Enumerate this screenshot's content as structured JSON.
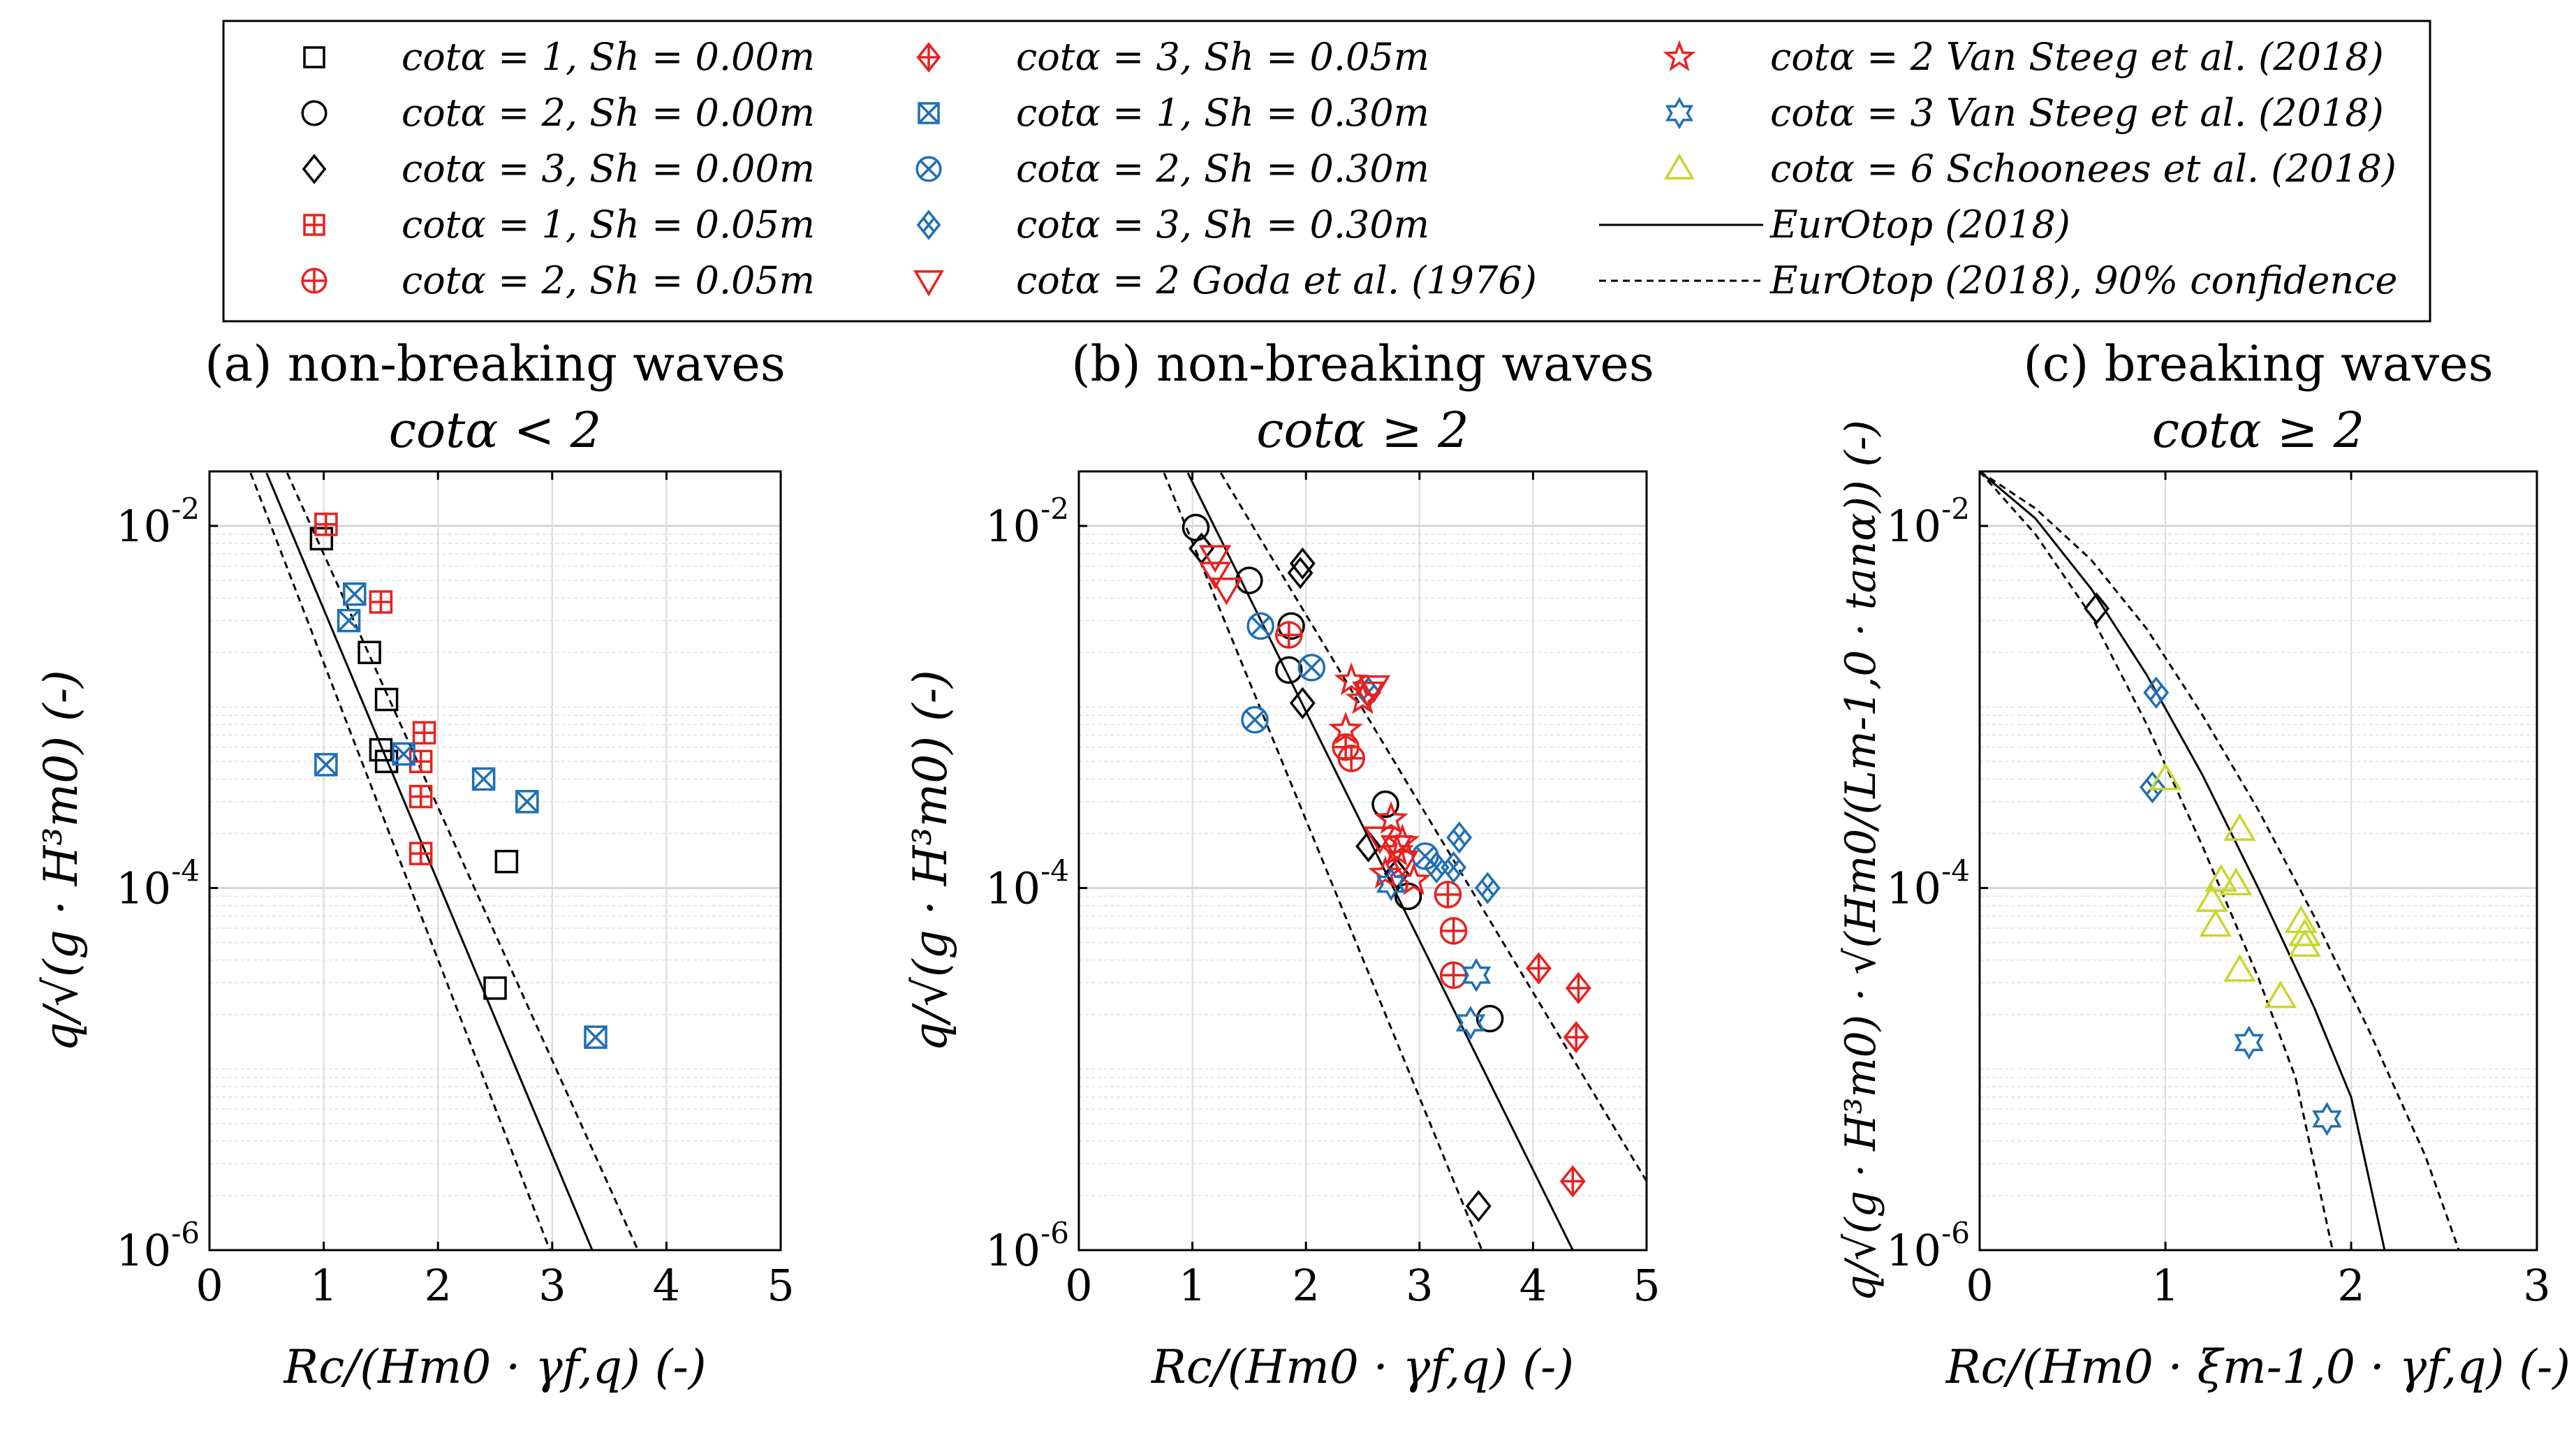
{
  "legend": {
    "entries": [
      {
        "label": "cotα = 1, Sh = 0.00m",
        "marker": "square",
        "color": "#000000"
      },
      {
        "label": "cotα = 2, Sh = 0.00m",
        "marker": "circle",
        "color": "#000000"
      },
      {
        "label": "cotα = 3, Sh = 0.00m",
        "marker": "diamond",
        "color": "#000000"
      },
      {
        "label": "cotα = 1, Sh = 0.05m",
        "marker": "square-plus",
        "color": "#e8211f"
      },
      {
        "label": "cotα = 2, Sh = 0.05m",
        "marker": "circle-plus",
        "color": "#e8211f"
      },
      {
        "label": "cotα = 3, Sh = 0.05m",
        "marker": "diamond-plus",
        "color": "#e8211f"
      },
      {
        "label": "cotα = 1, Sh = 0.30m",
        "marker": "square-x",
        "color": "#1f6fb5"
      },
      {
        "label": "cotα = 2, Sh = 0.30m",
        "marker": "circle-x",
        "color": "#1f6fb5"
      },
      {
        "label": "cotα = 3, Sh = 0.30m",
        "marker": "diamond-x",
        "color": "#1f6fb5"
      },
      {
        "label": "cotα = 2 Goda et al. (1976)",
        "marker": "triangle-down",
        "color": "#e8211f"
      },
      {
        "label": "cotα = 2 Van Steeg et al. (2018)",
        "marker": "star5",
        "color": "#e8211f"
      },
      {
        "label": "cotα = 3 Van Steeg et al. (2018)",
        "marker": "star6",
        "color": "#1f6fb5"
      },
      {
        "label": "cotα = 6 Schoonees et al. (2018)",
        "marker": "triangle-up",
        "color": "#c8d62a"
      },
      {
        "label": "EurOtop (2018)",
        "marker": "line-solid",
        "color": "#000000"
      },
      {
        "label": "EurOtop (2018), 90% confidence",
        "marker": "line-dashed",
        "color": "#000000"
      }
    ]
  },
  "chart_data": [
    {
      "type": "scatter",
      "title": "(a) non-breaking waves",
      "subtitle": "cotα < 2",
      "xlabel": "Rc/(Hm0 · γf,q) (-)",
      "ylabel": "q/√(g · H³m0) (-)",
      "xlim": [
        0,
        5
      ],
      "ylim": [
        1e-06,
        0.02
      ],
      "yscale": "log",
      "xticks": [
        "0",
        "1",
        "2",
        "3",
        "4",
        "5"
      ],
      "yticks": [
        "10-2",
        "10-4",
        "10-6"
      ],
      "grid": true,
      "series": [
        {
          "name": "cotα = 1, Sh = 0.00m",
          "marker": "square",
          "color": "#000000",
          "points": [
            [
              0.98,
              0.0085
            ],
            [
              1.4,
              0.002
            ],
            [
              1.55,
              0.0011
            ],
            [
              1.5,
              0.00058
            ],
            [
              1.55,
              0.0005
            ],
            [
              2.6,
              0.00014
            ],
            [
              2.5,
              2.8e-05
            ]
          ]
        },
        {
          "name": "cotα = 1, Sh = 0.05m",
          "marker": "square-plus",
          "color": "#e8211f",
          "points": [
            [
              1.02,
              0.0102
            ],
            [
              1.5,
              0.0038
            ],
            [
              1.88,
              0.00072
            ],
            [
              1.85,
              0.0005
            ],
            [
              1.85,
              0.00032
            ],
            [
              1.85,
              0.000155
            ]
          ]
        },
        {
          "name": "cotα = 1, Sh = 0.30m",
          "marker": "square-x",
          "color": "#1f6fb5",
          "points": [
            [
              1.27,
              0.0042
            ],
            [
              1.22,
              0.003
            ],
            [
              1.7,
              0.00055
            ],
            [
              1.02,
              0.00048
            ],
            [
              2.4,
              0.0004
            ],
            [
              2.78,
              0.0003
            ],
            [
              3.38,
              1.5e-05
            ]
          ]
        }
      ],
      "lines": [
        {
          "name": "EurOtop (2018)",
          "style": "solid",
          "points": [
            [
              0.5,
              0.0196
            ],
            [
              3.35,
              1e-06
            ]
          ]
        },
        {
          "name": "EurOtop (2018), 90% confidence upper",
          "style": "dashed",
          "points": [
            [
              0.68,
              0.0196
            ],
            [
              3.75,
              1e-06
            ]
          ]
        },
        {
          "name": "EurOtop (2018), 90% confidence lower",
          "style": "dashed",
          "points": [
            [
              0.36,
              0.0196
            ],
            [
              2.98,
              1e-06
            ]
          ]
        }
      ]
    },
    {
      "type": "scatter",
      "title": "(b) non-breaking waves",
      "subtitle": "cotα ≥ 2",
      "xlabel": "Rc/(Hm0 · γf,q) (-)",
      "ylabel": "q/√(g · H³m0) (-)",
      "xlim": [
        0,
        5
      ],
      "ylim": [
        1e-06,
        0.02
      ],
      "yscale": "log",
      "xticks": [
        "0",
        "1",
        "2",
        "3",
        "4",
        "5"
      ],
      "yticks": [
        "10-2",
        "10-4",
        "10-6"
      ],
      "grid": true,
      "series": [
        {
          "name": "cotα = 2, Sh = 0.00m",
          "marker": "circle",
          "color": "#000000",
          "points": [
            [
              1.03,
              0.0098
            ],
            [
              1.5,
              0.005
            ],
            [
              1.87,
              0.0028
            ],
            [
              1.85,
              0.0016
            ],
            [
              2.7,
              0.00029
            ],
            [
              2.9,
              9e-05
            ],
            [
              3.62,
              1.9e-05
            ]
          ]
        },
        {
          "name": "cotα = 3, Sh = 0.00m",
          "marker": "diamond",
          "color": "#000000",
          "points": [
            [
              1.08,
              0.0075
            ],
            [
              1.95,
              0.0055
            ],
            [
              1.97,
              0.0062
            ],
            [
              1.97,
              0.00105
            ],
            [
              2.55,
              0.00017
            ],
            [
              2.8,
              0.00012
            ],
            [
              3.52,
              1.75e-06
            ]
          ]
        },
        {
          "name": "cotα = 2, Sh = 0.05m",
          "marker": "circle-plus",
          "color": "#e8211f",
          "points": [
            [
              1.85,
              0.0025
            ],
            [
              2.35,
              0.0006
            ],
            [
              2.4,
              0.00052
            ],
            [
              3.25,
              9.2e-05
            ],
            [
              3.3,
              5.8e-05
            ],
            [
              3.3,
              3.3e-05
            ]
          ]
        },
        {
          "name": "cotα = 3, Sh = 0.05m",
          "marker": "diamond-plus",
          "color": "#e8211f",
          "points": [
            [
              4.05,
              3.6e-05
            ],
            [
              4.4,
              2.8e-05
            ],
            [
              4.38,
              1.5e-05
            ],
            [
              4.35,
              2.4e-06
            ]
          ]
        },
        {
          "name": "cotα = 2, Sh = 0.30m",
          "marker": "circle-x",
          "color": "#1f6fb5",
          "points": [
            [
              1.6,
              0.0028
            ],
            [
              2.05,
              0.00165
            ],
            [
              1.55,
              0.00085
            ],
            [
              3.05,
              0.00015
            ]
          ]
        },
        {
          "name": "cotα = 3, Sh = 0.30m",
          "marker": "diamond-x",
          "color": "#1f6fb5",
          "points": [
            [
              2.55,
              0.0012
            ],
            [
              3.15,
              0.00013
            ],
            [
              3.3,
              0.00013
            ],
            [
              3.35,
              0.00019
            ],
            [
              3.6,
              0.0001
            ]
          ]
        },
        {
          "name": "cotα = 2 Goda et al. (1976)",
          "marker": "triangle-down",
          "color": "#e8211f",
          "points": [
            [
              1.2,
              0.0068
            ],
            [
              1.2,
              0.0055
            ],
            [
              1.3,
              0.0045
            ],
            [
              2.6,
              0.0013
            ],
            [
              2.55,
              0.0012
            ],
            [
              2.65,
              0.00019
            ],
            [
              2.8,
              0.00017
            ],
            [
              2.85,
              0.00014
            ]
          ]
        },
        {
          "name": "cotα = 2 Van Steeg et al. (2018)",
          "marker": "star5",
          "color": "#e8211f",
          "points": [
            [
              2.4,
              0.0014
            ],
            [
              2.5,
              0.0011
            ],
            [
              2.35,
              0.00075
            ],
            [
              2.75,
              0.00024
            ],
            [
              2.85,
              0.00018
            ],
            [
              2.8,
              0.00016
            ],
            [
              2.7,
              0.00012
            ],
            [
              2.95,
              0.00011
            ]
          ]
        },
        {
          "name": "cotα = 3 Van Steeg et al. (2018)",
          "marker": "star6",
          "color": "#1f6fb5",
          "points": [
            [
              2.75,
              0.000105
            ],
            [
              3.5,
              3.3e-05
            ],
            [
              3.45,
              1.8e-05
            ]
          ]
        }
      ],
      "lines": [
        {
          "name": "EurOtop (2018)",
          "style": "solid",
          "points": [
            [
              0.96,
              0.0196
            ],
            [
              4.35,
              1e-06
            ]
          ]
        },
        {
          "name": "EurOtop (2018), 90% confidence upper",
          "style": "dashed",
          "points": [
            [
              1.25,
              0.0196
            ],
            [
              5.0,
              2.4e-06
            ]
          ]
        },
        {
          "name": "EurOtop (2018), 90% confidence lower",
          "style": "dashed",
          "points": [
            [
              0.75,
              0.0196
            ],
            [
              3.55,
              1e-06
            ]
          ]
        }
      ]
    },
    {
      "type": "scatter",
      "title": "(c) breaking waves",
      "subtitle": "cotα ≥ 2",
      "xlabel": "Rc/(Hm0 · ξm-1,0 · γf,q) (-)",
      "ylabel": "q/√(g · H³m0) · √(Hm0/(Lm-1,0 · tanα)) (-)",
      "xlim": [
        0,
        3
      ],
      "ylim": [
        1e-06,
        0.02
      ],
      "yscale": "log",
      "xticks": [
        "0",
        "1",
        "2",
        "3"
      ],
      "yticks": [
        "10-2",
        "10-4",
        "10-6"
      ],
      "grid": true,
      "series": [
        {
          "name": "cotα = 3, Sh = 0.00m",
          "marker": "diamond",
          "color": "#000000",
          "points": [
            [
              0.63,
              0.0035
            ]
          ]
        },
        {
          "name": "cotα = 3, Sh = 0.30m",
          "marker": "diamond-x",
          "color": "#1f6fb5",
          "points": [
            [
              0.95,
              0.0012
            ],
            [
              0.93,
              0.00036
            ]
          ]
        },
        {
          "name": "cotα = 3 Van Steeg et al. (2018)",
          "marker": "star6",
          "color": "#1f6fb5",
          "points": [
            [
              1.45,
              1.4e-05
            ],
            [
              1.87,
              5.3e-06
            ]
          ]
        },
        {
          "name": "cotα = 6 Schoonees et al. (2018)",
          "marker": "triangle-up",
          "color": "#c8d62a",
          "points": [
            [
              1.0,
              0.0004
            ],
            [
              1.4,
              0.00021
            ],
            [
              1.3,
              0.00011
            ],
            [
              1.38,
              0.000105
            ],
            [
              1.25,
              8.5e-05
            ],
            [
              1.27,
              6.2e-05
            ],
            [
              1.4,
              3.5e-05
            ],
            [
              1.62,
              2.5e-05
            ],
            [
              1.73,
              6.5e-05
            ],
            [
              1.75,
              5.5e-05
            ],
            [
              1.75,
              4.8e-05
            ]
          ]
        }
      ],
      "lines": [
        {
          "name": "EurOtop (2018)",
          "style": "solid",
          "points": [
            [
              0.0,
              0.02
            ],
            [
              0.3,
              0.011
            ],
            [
              0.6,
              0.0045
            ],
            [
              0.9,
              0.0015
            ],
            [
              1.2,
              0.00042
            ],
            [
              1.5,
              0.0001
            ],
            [
              1.8,
              2.2e-05
            ],
            [
              2.0,
              7e-06
            ],
            [
              2.18,
              1e-06
            ]
          ]
        },
        {
          "name": "EurOtop (2018), 90% confidence upper",
          "style": "dashed",
          "points": [
            [
              0.0,
              0.02
            ],
            [
              0.3,
              0.0125
            ],
            [
              0.6,
              0.0065
            ],
            [
              0.9,
              0.0027
            ],
            [
              1.2,
              0.0009
            ],
            [
              1.5,
              0.00027
            ],
            [
              1.8,
              7e-05
            ],
            [
              2.1,
              1.6e-05
            ],
            [
              2.4,
              3.3e-06
            ],
            [
              2.58,
              1e-06
            ]
          ]
        },
        {
          "name": "EurOtop (2018), 90% confidence lower",
          "style": "dashed",
          "points": [
            [
              0.0,
              0.02
            ],
            [
              0.3,
              0.009
            ],
            [
              0.6,
              0.0032
            ],
            [
              0.9,
              0.0008
            ],
            [
              1.2,
              0.00017
            ],
            [
              1.5,
              3.2e-05
            ],
            [
              1.7,
              9e-06
            ],
            [
              1.9,
              1e-06
            ]
          ]
        }
      ]
    }
  ]
}
